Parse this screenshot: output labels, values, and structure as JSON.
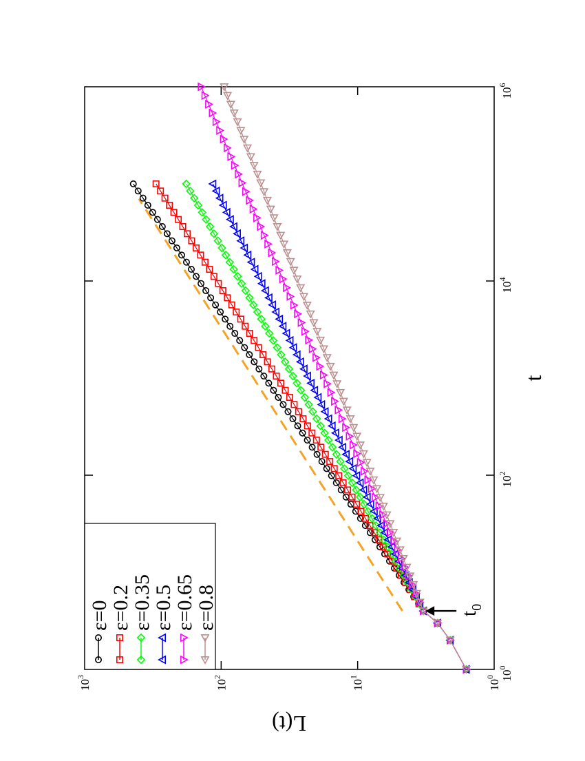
{
  "chart_data": {
    "type": "line",
    "orientation": "rotated 90 degrees (landscape figure shown in portrait)",
    "xlabel": "t",
    "ylabel": "L(t)",
    "x_scale": "log",
    "y_scale": "log",
    "xlim": [
      1,
      1000000
    ],
    "ylim": [
      1,
      1000
    ],
    "x_ticks": [
      {
        "value": 1,
        "base": "10",
        "exp": "0"
      },
      {
        "value": 100,
        "base": "10",
        "exp": "2"
      },
      {
        "value": 10000,
        "base": "10",
        "exp": "4"
      },
      {
        "value": 1000000,
        "base": "10",
        "exp": "6"
      }
    ],
    "y_ticks": [
      {
        "value": 1,
        "base": "10",
        "exp": "0"
      },
      {
        "value": 10,
        "base": "10",
        "exp": "1"
      },
      {
        "value": 100,
        "base": "10",
        "exp": "2"
      },
      {
        "value": 1000,
        "base": "10",
        "exp": "3"
      }
    ],
    "grid": false,
    "legend_position": "top-left",
    "annotation": {
      "text_base": "t",
      "text_sub": "0",
      "x": 4,
      "y": 3.3
    },
    "reference_line": {
      "style": "dashed",
      "color": "#f4a324",
      "x": [
        4,
        70000
      ],
      "y": [
        4.7,
        400
      ]
    },
    "series": [
      {
        "name": "ε=0",
        "marker": "circle",
        "color": "#000000",
        "t0": 4,
        "L0": 3.3,
        "t_end": 100000,
        "L_end": 440,
        "exponent": 0.38
      },
      {
        "name": "ε=0.2",
        "marker": "square",
        "color": "#ff0000",
        "t0": 4,
        "L0": 3.3,
        "t_end": 100000,
        "L_end": 300,
        "exponent": 0.35
      },
      {
        "name": "ε=0.35",
        "marker": "diamond",
        "color": "#00ff00",
        "t0": 4,
        "L0": 3.3,
        "t_end": 100000,
        "L_end": 180,
        "exponent": 0.32
      },
      {
        "name": "ε=0.5",
        "marker": "triangle-up",
        "color": "#0000ff",
        "t0": 4,
        "L0": 3.3,
        "t_end": 100000,
        "L_end": 115,
        "exponent": 0.29
      },
      {
        "name": "ε=0.65",
        "marker": "triangle-down",
        "color": "#ff00ff",
        "t0": 4,
        "L0": 3.3,
        "t_end": 1000000,
        "L_end": 140,
        "exponent": 0.22
      },
      {
        "name": "ε=0.8",
        "marker": "triangle-left",
        "color": "#bc8f8f",
        "t0": 4,
        "L0": 3.3,
        "t_end": 1000000,
        "L_end": 95,
        "exponent": 0.2
      }
    ],
    "early_points": {
      "t": [
        1,
        2,
        3
      ],
      "L": [
        1.6,
        2.1,
        2.6
      ]
    }
  }
}
